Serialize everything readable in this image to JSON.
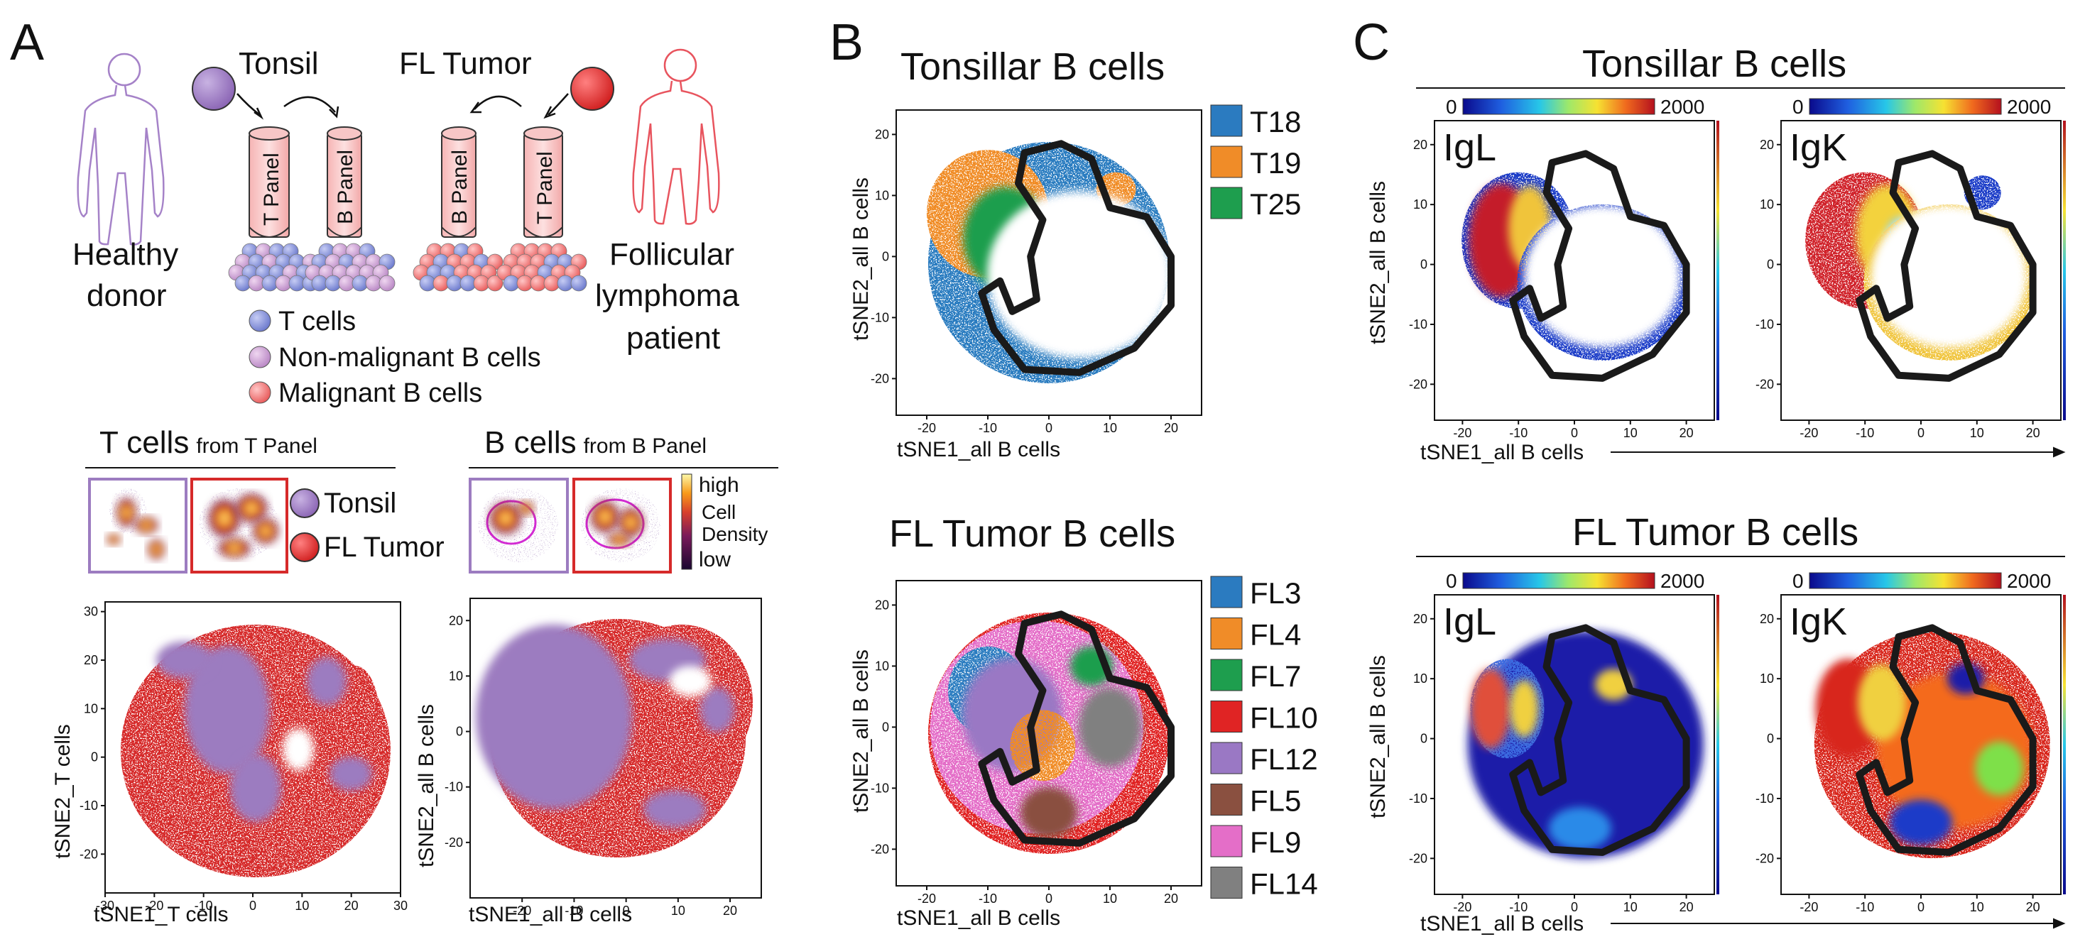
{
  "panels": {
    "a": "A",
    "b": "B",
    "c": "C"
  },
  "panel_a": {
    "tonsil": "Tonsil",
    "fl_tumor": "FL Tumor",
    "healthy": "Healthy",
    "donor": "donor",
    "follicular": "Follicular",
    "lymphoma": "lymphoma",
    "patient": "patient",
    "tubes": [
      "T Panel",
      "B Panel",
      "B Panel",
      "T Panel"
    ],
    "legend": [
      "T cells",
      "Non-malignant B cells",
      "Malignant B cells"
    ],
    "t_header_bold": "T cells",
    "t_header_small": "from T Panel",
    "b_header_bold": "B cells",
    "b_header_small": "from B Panel",
    "density_tonsil": "Tonsil",
    "density_fl": "FL Tumor",
    "density_high": "high",
    "density_cell": "Cell",
    "density_density": "Density",
    "density_low": "low",
    "colors": {
      "tonsil": "#9c7cc0",
      "fl": "#d62a2a"
    }
  },
  "chart_data": [
    {
      "id": "a_tcells",
      "type": "scatter",
      "title": "T cells from T Panel",
      "xlabel": "tSNE1_T cells",
      "ylabel": "tSNE2_T cells",
      "xlim": [
        -30,
        30
      ],
      "ylim": [
        -28,
        32
      ],
      "xticks": [
        -30,
        -20,
        -10,
        0,
        10,
        20,
        30
      ],
      "yticks": [
        -20,
        -10,
        0,
        10,
        20,
        30
      ],
      "series": [
        {
          "name": "FL Tumor",
          "color": "#d62a2a"
        },
        {
          "name": "Tonsil",
          "color": "#9c7cc0"
        }
      ]
    },
    {
      "id": "a_bcells",
      "type": "scatter",
      "title": "B cells from B Panel",
      "xlabel": "tSNE1_all B cells",
      "ylabel": "tSNE2_all B cells",
      "xlim": [
        -30,
        26
      ],
      "ylim": [
        -30,
        24
      ],
      "xticks": [
        -20,
        -10,
        0,
        10,
        20
      ],
      "yticks": [
        -20,
        -10,
        0,
        10,
        20
      ],
      "series": [
        {
          "name": "Tonsil",
          "color": "#9c7cc0"
        },
        {
          "name": "FL Tumor",
          "color": "#d62a2a"
        }
      ]
    },
    {
      "id": "b_tonsil",
      "type": "scatter",
      "title": "Tonsillar B cells",
      "xlabel": "tSNE1_all B cells",
      "ylabel": "tSNE2_all B cells",
      "xlim": [
        -25,
        25
      ],
      "ylim": [
        -26,
        24
      ],
      "xticks": [
        -20,
        -10,
        0,
        10,
        20
      ],
      "yticks": [
        -20,
        -10,
        0,
        10,
        20
      ],
      "series": [
        {
          "name": "T18",
          "color": "#2b7bc0"
        },
        {
          "name": "T19",
          "color": "#f08c28"
        },
        {
          "name": "T25",
          "color": "#1e9e4e"
        }
      ]
    },
    {
      "id": "b_fl",
      "type": "scatter",
      "title": "FL Tumor B cells",
      "xlabel": "tSNE1_all B cells",
      "ylabel": "tSNE2_all B cells",
      "xlim": [
        -25,
        25
      ],
      "ylim": [
        -26,
        24
      ],
      "xticks": [
        -20,
        -10,
        0,
        10,
        20
      ],
      "yticks": [
        -20,
        -10,
        0,
        10,
        20
      ],
      "series": [
        {
          "name": "FL3",
          "color": "#2b7bc0"
        },
        {
          "name": "FL4",
          "color": "#f08c28"
        },
        {
          "name": "FL7",
          "color": "#1e9e4e"
        },
        {
          "name": "FL10",
          "color": "#e02424"
        },
        {
          "name": "FL12",
          "color": "#9a78c4"
        },
        {
          "name": "FL5",
          "color": "#8a5040"
        },
        {
          "name": "FL9",
          "color": "#e46ec8"
        },
        {
          "name": "FL14",
          "color": "#808080"
        }
      ]
    },
    {
      "id": "c_panels",
      "type": "heatmap",
      "titles": [
        "Tonsillar B cells",
        "FL Tumor B cells"
      ],
      "markers": [
        "IgL",
        "IgK"
      ],
      "colorbar_min": "0",
      "colorbar_max": "2000",
      "xlabel": "tSNE1_all B cells",
      "ylabel": "tSNE2_all B cells",
      "xticks": [
        -20,
        -10,
        0,
        10,
        20
      ],
      "yticks": [
        -20,
        -10,
        0,
        10,
        20
      ]
    }
  ]
}
